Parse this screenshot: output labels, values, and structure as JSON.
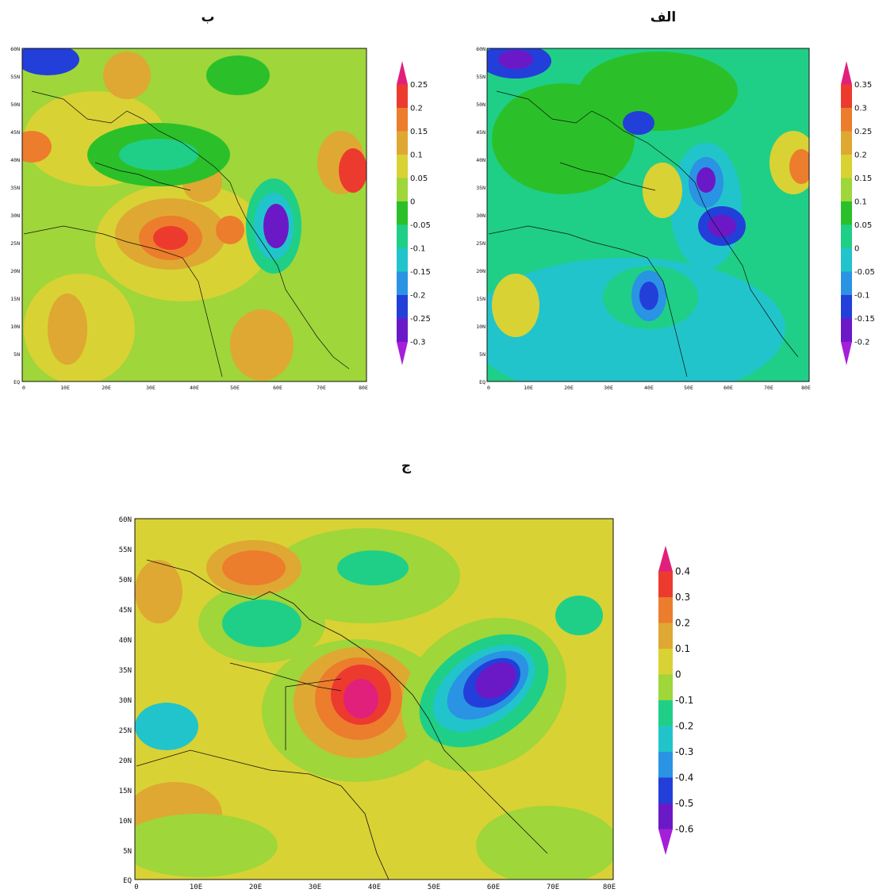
{
  "panels": {
    "a": {
      "title": "الف",
      "lat_labels": [
        "60N",
        "55N",
        "50N",
        "45N",
        "40N",
        "35N",
        "30N",
        "25N",
        "20N",
        "15N",
        "10N",
        "5N",
        "EQ"
      ],
      "lon_labels": [
        "0",
        "10E",
        "20E",
        "30E",
        "40E",
        "50E",
        "60E",
        "70E",
        "80E"
      ],
      "colorbar_labels": [
        "0.35",
        "0.3",
        "0.25",
        "0.2",
        "0.15",
        "0.1",
        "0.05",
        "0",
        "-0.05",
        "-0.1",
        "-0.15",
        "-0.2"
      ],
      "colorbar_colors": [
        "#e0207a",
        "#ec3b2e",
        "#ec7d2c",
        "#dfa832",
        "#d9d234",
        "#9fd63a",
        "#2bc02a",
        "#1fcf87",
        "#22c4cb",
        "#2a93e4",
        "#233fd9",
        "#6b19c7",
        "#a51fd8"
      ]
    },
    "b": {
      "title": "ب",
      "lat_labels": [
        "60N",
        "55N",
        "50N",
        "45N",
        "40N",
        "35N",
        "30N",
        "25N",
        "20N",
        "15N",
        "10N",
        "5N",
        "EQ"
      ],
      "lon_labels": [
        "0",
        "10E",
        "20E",
        "30E",
        "40E",
        "50E",
        "60E",
        "70E",
        "80E"
      ],
      "colorbar_labels": [
        "0.25",
        "0.2",
        "0.15",
        "0.1",
        "0.05",
        "0",
        "-0.05",
        "-0.1",
        "-0.15",
        "-0.2",
        "-0.25",
        "-0.3"
      ],
      "colorbar_colors": [
        "#e0207a",
        "#ec3b2e",
        "#ec7d2c",
        "#dfa832",
        "#d9d234",
        "#9fd63a",
        "#2bc02a",
        "#1fcf87",
        "#22c4cb",
        "#2a93e4",
        "#233fd9",
        "#6b19c7",
        "#a51fd8"
      ]
    },
    "c": {
      "title": "ج",
      "lat_labels": [
        "60N",
        "55N",
        "50N",
        "45N",
        "40N",
        "35N",
        "30N",
        "25N",
        "20N",
        "15N",
        "10N",
        "5N",
        "EQ"
      ],
      "lon_labels": [
        "0",
        "10E",
        "20E",
        "30E",
        "40E",
        "50E",
        "60E",
        "70E",
        "80E"
      ],
      "colorbar_labels": [
        "0.4",
        "0.3",
        "0.2",
        "0.1",
        "0",
        "-0.1",
        "-0.2",
        "-0.3",
        "-0.4",
        "-0.5",
        "-0.6"
      ],
      "colorbar_colors": [
        "#e0207a",
        "#ec3b2e",
        "#ec7d2c",
        "#dfa832",
        "#d9d234",
        "#9fd63a",
        "#1fcf87",
        "#22c4cb",
        "#2a93e4",
        "#233fd9",
        "#6b19c7",
        "#a51fd8"
      ]
    }
  }
}
